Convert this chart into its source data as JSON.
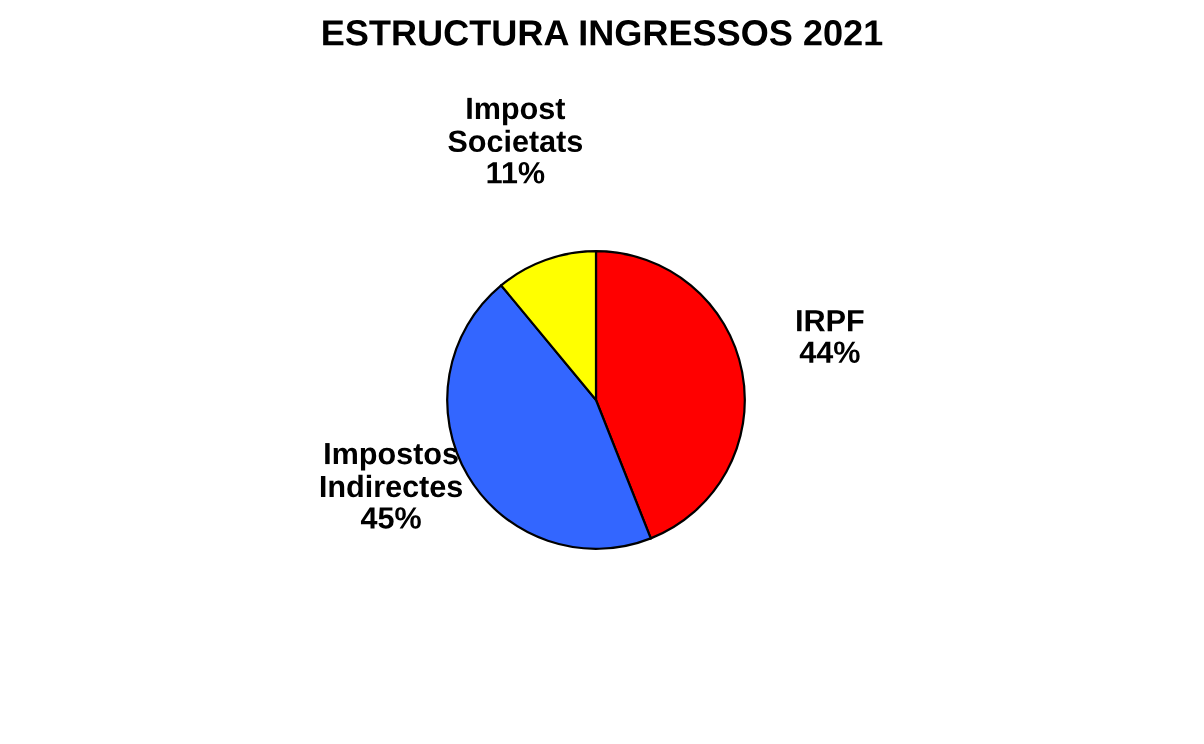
{
  "chart_data": {
    "type": "pie",
    "title": "ESTRUCTURA INGRESSOS 2021",
    "categories": [
      "IRPF",
      "Impostos Indirectes",
      "Impost Societats"
    ],
    "values": [
      44,
      45,
      11
    ],
    "colors": [
      "#ff0000",
      "#3366ff",
      "#ffff00"
    ],
    "value_labels": [
      "44%",
      "45%",
      "11%"
    ],
    "legend": false
  }
}
